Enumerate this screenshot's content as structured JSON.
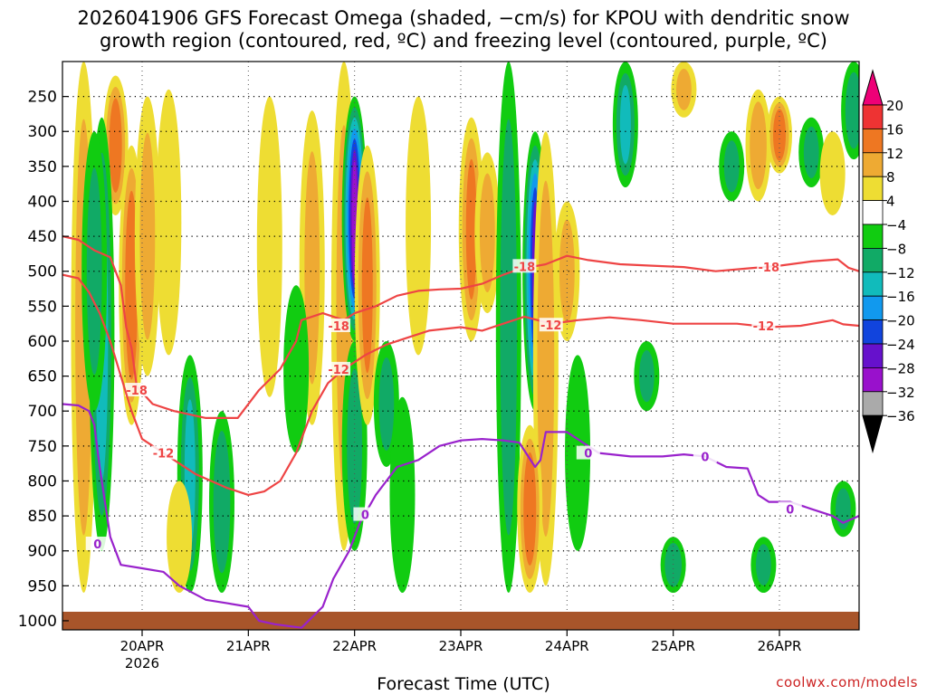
{
  "chart_data": {
    "type": "heatmap",
    "title_lines": [
      "2026041906 GFS Forecast Omega (shaded, −cm/s) for KPOU with dendritic snow",
      "growth region (contoured, red, ºC) and freezing level (contoured, purple, ºC)"
    ],
    "xlabel": "Forecast Time (UTC)",
    "x_ticks": [
      {
        "label": "20APR",
        "sub": "2026",
        "day": 1
      },
      {
        "label": "21APR",
        "sub": "",
        "day": 2
      },
      {
        "label": "22APR",
        "sub": "",
        "day": 3
      },
      {
        "label": "23APR",
        "sub": "",
        "day": 4
      },
      {
        "label": "24APR",
        "sub": "",
        "day": 5
      },
      {
        "label": "25APR",
        "sub": "",
        "day": 6
      },
      {
        "label": "26APR",
        "sub": "",
        "day": 7
      }
    ],
    "x_range_days": [
      0.25,
      7.75
    ],
    "y_ticks": [
      250,
      300,
      350,
      400,
      450,
      500,
      550,
      600,
      650,
      700,
      750,
      800,
      850,
      900,
      950,
      1000
    ],
    "y_range_hpa": [
      200,
      1013
    ],
    "colorbar": {
      "labels": [
        "20",
        "16",
        "12",
        "8",
        "4",
        "−4",
        "−8",
        "−12",
        "−16",
        "−20",
        "−24",
        "−28",
        "−32",
        "−36"
      ],
      "colors": [
        "#ee0077",
        "#ee3333",
        "#ee7722",
        "#eeaa33",
        "#eedd33",
        "#ffffff",
        "#11cc11",
        "#11aa66",
        "#11bbbb",
        "#1199ee",
        "#1144dd",
        "#6611cc",
        "#9911cc",
        "#aaaaaa",
        "#000000"
      ]
    },
    "omega_features": [
      {
        "day": 0.45,
        "p1": 200,
        "p2": 960,
        "v": 10
      },
      {
        "day": 0.75,
        "p1": 220,
        "p2": 420,
        "v": 14
      },
      {
        "day": 0.62,
        "p1": 280,
        "p2": 900,
        "v": -14
      },
      {
        "day": 0.55,
        "p1": 300,
        "p2": 700,
        "v": -8
      },
      {
        "day": 0.9,
        "p1": 320,
        "p2": 720,
        "v": 14
      },
      {
        "day": 1.05,
        "p1": 250,
        "p2": 650,
        "v": 8
      },
      {
        "day": 1.25,
        "p1": 240,
        "p2": 620,
        "v": 5
      },
      {
        "day": 1.45,
        "p1": 620,
        "p2": 960,
        "v": -12
      },
      {
        "day": 1.75,
        "p1": 700,
        "p2": 960,
        "v": -10
      },
      {
        "day": 1.35,
        "p1": 800,
        "p2": 960,
        "v": 6
      },
      {
        "day": 2.2,
        "p1": 250,
        "p2": 680,
        "v": 5
      },
      {
        "day": 2.6,
        "p1": 270,
        "p2": 720,
        "v": 8
      },
      {
        "day": 2.45,
        "p1": 520,
        "p2": 760,
        "v": -6
      },
      {
        "day": 2.9,
        "p1": 200,
        "p2": 900,
        "v": 8
      },
      {
        "day": 3.0,
        "p1": 250,
        "p2": 600,
        "v": -28
      },
      {
        "day": 3.0,
        "p1": 600,
        "p2": 900,
        "v": -8
      },
      {
        "day": 3.12,
        "p1": 320,
        "p2": 720,
        "v": 12
      },
      {
        "day": 3.3,
        "p1": 600,
        "p2": 780,
        "v": -8
      },
      {
        "day": 3.45,
        "p1": 680,
        "p2": 960,
        "v": -6
      },
      {
        "day": 3.6,
        "p1": 250,
        "p2": 620,
        "v": 4
      },
      {
        "day": 4.1,
        "p1": 280,
        "p2": 600,
        "v": 12
      },
      {
        "day": 4.25,
        "p1": 330,
        "p2": 560,
        "v": 8
      },
      {
        "day": 4.45,
        "p1": 200,
        "p2": 960,
        "v": -10
      },
      {
        "day": 4.7,
        "p1": 300,
        "p2": 700,
        "v": -24
      },
      {
        "day": 4.8,
        "p1": 300,
        "p2": 950,
        "v": 10
      },
      {
        "day": 4.65,
        "p1": 720,
        "p2": 960,
        "v": 14
      },
      {
        "day": 5.0,
        "p1": 400,
        "p2": 600,
        "v": 8
      },
      {
        "day": 5.1,
        "p1": 620,
        "p2": 900,
        "v": -6
      },
      {
        "day": 5.55,
        "p1": 200,
        "p2": 380,
        "v": -12
      },
      {
        "day": 5.75,
        "p1": 600,
        "p2": 700,
        "v": -8
      },
      {
        "day": 6.1,
        "p1": 200,
        "p2": 280,
        "v": 8
      },
      {
        "day": 6.0,
        "p1": 880,
        "p2": 960,
        "v": -10
      },
      {
        "day": 6.55,
        "p1": 300,
        "p2": 400,
        "v": -8
      },
      {
        "day": 6.8,
        "p1": 240,
        "p2": 400,
        "v": 10
      },
      {
        "day": 6.85,
        "p1": 880,
        "p2": 960,
        "v": -8
      },
      {
        "day": 7.0,
        "p1": 250,
        "p2": 360,
        "v": 14
      },
      {
        "day": 7.3,
        "p1": 280,
        "p2": 380,
        "v": -8
      },
      {
        "day": 7.5,
        "p1": 300,
        "p2": 420,
        "v": 6
      },
      {
        "day": 7.6,
        "p1": 800,
        "p2": 880,
        "v": -8
      },
      {
        "day": 7.7,
        "p1": 200,
        "p2": 340,
        "v": -10
      }
    ],
    "contours": [
      {
        "label": "-18",
        "color": "#ee4444",
        "label_points": [
          {
            "day": 0.95,
            "p": 670
          },
          {
            "day": 2.85,
            "p": 578
          },
          {
            "day": 4.6,
            "p": 493
          },
          {
            "day": 6.9,
            "p": 494
          }
        ],
        "points": [
          [
            0.25,
            450
          ],
          [
            0.4,
            455
          ],
          [
            0.55,
            470
          ],
          [
            0.7,
            480
          ],
          [
            0.8,
            520
          ],
          [
            0.85,
            580
          ],
          [
            0.9,
            610
          ],
          [
            0.95,
            665
          ],
          [
            1.1,
            690
          ],
          [
            1.3,
            700
          ],
          [
            1.6,
            710
          ],
          [
            1.9,
            710
          ],
          [
            2.1,
            670
          ],
          [
            2.3,
            640
          ],
          [
            2.45,
            600
          ],
          [
            2.5,
            570
          ],
          [
            2.7,
            560
          ],
          [
            2.9,
            570
          ],
          [
            3.0,
            560
          ],
          [
            3.2,
            550
          ],
          [
            3.4,
            535
          ],
          [
            3.6,
            528
          ],
          [
            3.8,
            526
          ],
          [
            4.0,
            525
          ],
          [
            4.2,
            518
          ],
          [
            4.4,
            505
          ],
          [
            4.55,
            497
          ],
          [
            4.8,
            490
          ],
          [
            5.0,
            478
          ],
          [
            5.2,
            484
          ],
          [
            5.5,
            490
          ],
          [
            5.8,
            492
          ],
          [
            6.1,
            494
          ],
          [
            6.4,
            500
          ],
          [
            6.7,
            496
          ],
          [
            7.0,
            492
          ],
          [
            7.3,
            486
          ],
          [
            7.55,
            483
          ],
          [
            7.65,
            495
          ],
          [
            7.75,
            500
          ]
        ]
      },
      {
        "label": "-12",
        "color": "#ee4444",
        "label_points": [
          {
            "day": 1.2,
            "p": 760
          },
          {
            "day": 2.85,
            "p": 640
          },
          {
            "day": 4.85,
            "p": 577
          },
          {
            "day": 6.85,
            "p": 578
          }
        ],
        "points": [
          [
            0.25,
            505
          ],
          [
            0.4,
            510
          ],
          [
            0.5,
            530
          ],
          [
            0.6,
            560
          ],
          [
            0.7,
            600
          ],
          [
            0.8,
            650
          ],
          [
            0.9,
            700
          ],
          [
            1.0,
            740
          ],
          [
            1.2,
            760
          ],
          [
            1.5,
            790
          ],
          [
            1.8,
            810
          ],
          [
            2.0,
            820
          ],
          [
            2.15,
            815
          ],
          [
            2.3,
            800
          ],
          [
            2.45,
            760
          ],
          [
            2.6,
            700
          ],
          [
            2.75,
            660
          ],
          [
            2.9,
            640
          ],
          [
            3.1,
            620
          ],
          [
            3.3,
            605
          ],
          [
            3.5,
            595
          ],
          [
            3.7,
            585
          ],
          [
            4.0,
            580
          ],
          [
            4.2,
            585
          ],
          [
            4.4,
            575
          ],
          [
            4.6,
            565
          ],
          [
            4.85,
            575
          ],
          [
            5.1,
            570
          ],
          [
            5.4,
            566
          ],
          [
            5.7,
            570
          ],
          [
            6.0,
            575
          ],
          [
            6.3,
            575
          ],
          [
            6.6,
            575
          ],
          [
            6.9,
            580
          ],
          [
            7.2,
            578
          ],
          [
            7.5,
            570
          ],
          [
            7.6,
            576
          ],
          [
            7.75,
            578
          ]
        ]
      },
      {
        "label": "0",
        "color": "#9922cc",
        "label_points": [
          {
            "day": 0.58,
            "p": 890
          },
          {
            "day": 3.1,
            "p": 848
          },
          {
            "day": 5.2,
            "p": 760
          },
          {
            "day": 6.3,
            "p": 765
          },
          {
            "day": 7.1,
            "p": 840
          }
        ],
        "points": [
          [
            0.25,
            690
          ],
          [
            0.4,
            692
          ],
          [
            0.5,
            700
          ],
          [
            0.55,
            720
          ],
          [
            0.6,
            780
          ],
          [
            0.65,
            830
          ],
          [
            0.7,
            880
          ],
          [
            0.8,
            920
          ],
          [
            1.0,
            925
          ],
          [
            1.2,
            930
          ],
          [
            1.35,
            950
          ],
          [
            1.6,
            970
          ],
          [
            1.8,
            975
          ],
          [
            2.0,
            980
          ],
          [
            2.1,
            1000
          ],
          [
            2.25,
            1005
          ],
          [
            2.5,
            1010
          ],
          [
            2.7,
            980
          ],
          [
            2.8,
            940
          ],
          [
            2.95,
            900
          ],
          [
            3.05,
            860
          ],
          [
            3.2,
            820
          ],
          [
            3.4,
            780
          ],
          [
            3.6,
            770
          ],
          [
            3.8,
            750
          ],
          [
            4.0,
            742
          ],
          [
            4.2,
            740
          ],
          [
            4.4,
            742
          ],
          [
            4.55,
            745
          ],
          [
            4.7,
            780
          ],
          [
            4.75,
            770
          ],
          [
            4.8,
            730
          ],
          [
            5.0,
            730
          ],
          [
            5.3,
            760
          ],
          [
            5.6,
            765
          ],
          [
            5.9,
            765
          ],
          [
            6.1,
            762
          ],
          [
            6.3,
            765
          ],
          [
            6.5,
            780
          ],
          [
            6.7,
            782
          ],
          [
            6.8,
            820
          ],
          [
            6.9,
            830
          ],
          [
            7.1,
            830
          ],
          [
            7.3,
            840
          ],
          [
            7.5,
            850
          ],
          [
            7.6,
            860
          ],
          [
            7.75,
            850
          ]
        ]
      }
    ]
  },
  "footer": {
    "credit": "coolwx.com/models"
  }
}
